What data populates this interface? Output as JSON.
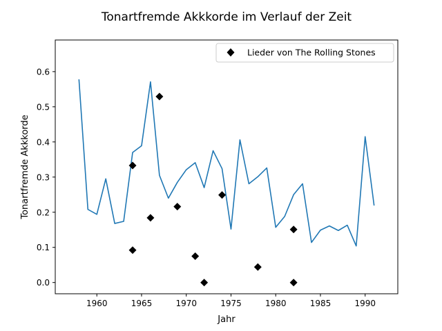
{
  "chart_data": {
    "type": "line",
    "title": "Tonartfremde Akkkorde im Verlauf der Zeit",
    "xlabel": "Jahr",
    "ylabel": "Tonartfremde Akkkorde",
    "xlim": [
      1955.35,
      1993.65
    ],
    "ylim": [
      -0.032,
      0.69
    ],
    "xticks": [
      1960,
      1965,
      1970,
      1975,
      1980,
      1985,
      1990
    ],
    "yticks": [
      0.0,
      0.1,
      0.2,
      0.3,
      0.4,
      0.5,
      0.6
    ],
    "ytick_labels": [
      "0.0",
      "0.1",
      "0.2",
      "0.3",
      "0.4",
      "0.5",
      "0.6"
    ],
    "grid": false,
    "legend_position": "top-right",
    "series": [
      {
        "kind": "line",
        "color": "#1f77b4",
        "x": [
          1958,
          1959,
          1960,
          1961,
          1962,
          1963,
          1964,
          1965,
          1966,
          1967,
          1968,
          1969,
          1970,
          1971,
          1972,
          1973,
          1974,
          1975,
          1976,
          1977,
          1978,
          1979,
          1980,
          1981,
          1982,
          1983,
          1984,
          1985,
          1986,
          1987,
          1988,
          1989,
          1990,
          1991
        ],
        "y": [
          0.578,
          0.208,
          0.194,
          0.295,
          0.168,
          0.174,
          0.37,
          0.389,
          0.571,
          0.305,
          0.24,
          0.285,
          0.321,
          0.341,
          0.27,
          0.375,
          0.324,
          0.152,
          0.406,
          0.281,
          0.301,
          0.326,
          0.157,
          0.188,
          0.25,
          0.281,
          0.114,
          0.149,
          0.161,
          0.148,
          0.163,
          0.104,
          0.415,
          0.219
        ]
      },
      {
        "kind": "marker",
        "name": "Lieder von The Rolling Stones",
        "color": "#000000",
        "marker": "diamond",
        "x": [
          1964,
          1964,
          1966,
          1967,
          1969,
          1971,
          1972,
          1974,
          1978,
          1982,
          1982
        ],
        "y": [
          0.333,
          0.092,
          0.184,
          0.529,
          0.216,
          0.075,
          0.0,
          0.249,
          0.044,
          0.151,
          0.0
        ]
      }
    ]
  }
}
